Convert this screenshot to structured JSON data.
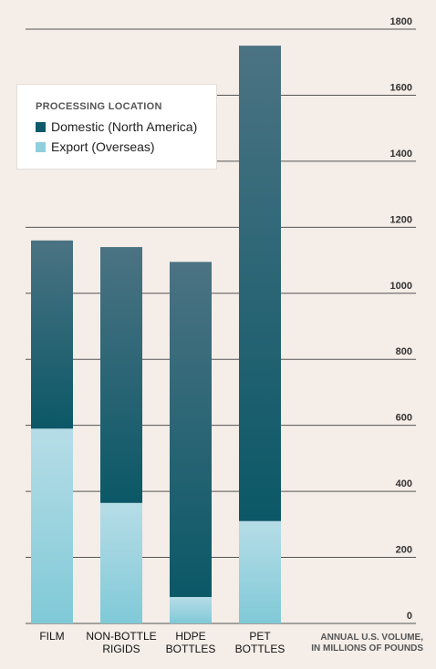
{
  "chart_data": {
    "type": "bar",
    "stacked": true,
    "categories": [
      [
        "FILM"
      ],
      [
        "NON-BOTTLE",
        "RIGIDS"
      ],
      [
        "HDPE",
        "BOTTLES"
      ],
      [
        "PET",
        "BOTTLES"
      ]
    ],
    "series": [
      {
        "name": "Export (Overseas)",
        "color": "#8fcfdc",
        "values": [
          590,
          365,
          80,
          310
        ]
      },
      {
        "name": "Domestic (North America)",
        "color": "#0f5a6a",
        "values": [
          570,
          775,
          1015,
          1440
        ]
      }
    ],
    "ylim": [
      0,
      1800
    ],
    "yticks": [
      0,
      200,
      400,
      600,
      800,
      1000,
      1200,
      1400,
      1600,
      1800
    ],
    "ylabel": [
      "ANNUAL U.S. VOLUME,",
      "IN MILLIONS OF POUNDS"
    ],
    "legend": {
      "title": "PROCESSING LOCATION",
      "placement": "top-left",
      "items": [
        {
          "label": "Domestic (North America)",
          "color": "#0f5a6a"
        },
        {
          "label": "Export (Overseas)",
          "color": "#8fcfdc"
        }
      ]
    },
    "grid": true
  }
}
